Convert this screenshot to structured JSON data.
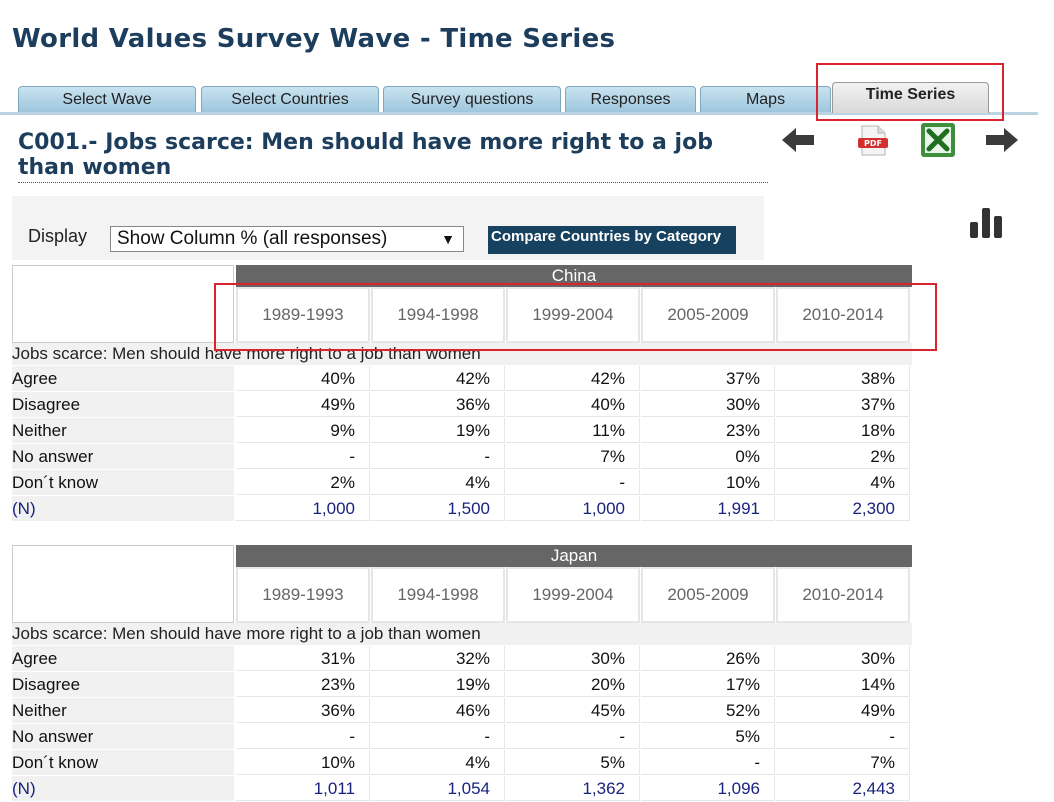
{
  "page_title": "World Values Survey Wave - Time Series",
  "tabs": [
    {
      "label": "Select Wave"
    },
    {
      "label": "Select Countries"
    },
    {
      "label": "Survey questions"
    },
    {
      "label": "Responses"
    },
    {
      "label": "Maps"
    },
    {
      "label": "Time Series",
      "active": true
    }
  ],
  "question_title": "C001.- Jobs scarce: Men should have more right to a job than women",
  "toolbar_icons": [
    "back-arrow-icon",
    "pdf-icon",
    "excel-icon",
    "forward-arrow-icon",
    "bar-chart-icon"
  ],
  "display": {
    "label": "Display",
    "selected": "Show Column % (all responses)",
    "compare_button": "Compare Countries by Category"
  },
  "countries": [
    {
      "name": "China",
      "waves": [
        "1989-1993",
        "1994-1998",
        "1999-2004",
        "2005-2009",
        "2010-2014"
      ],
      "question": "Jobs scarce: Men should have more right to a job than women",
      "rows": [
        {
          "label": "Agree",
          "values": [
            "40%",
            "42%",
            "42%",
            "37%",
            "38%"
          ]
        },
        {
          "label": "Disagree",
          "values": [
            "49%",
            "36%",
            "40%",
            "30%",
            "37%"
          ]
        },
        {
          "label": "Neither",
          "values": [
            "9%",
            "19%",
            "11%",
            "23%",
            "18%"
          ]
        },
        {
          "label": "No answer",
          "values": [
            "-",
            "-",
            "7%",
            "0%",
            "2%"
          ]
        },
        {
          "label": "Don´t know",
          "values": [
            "2%",
            "4%",
            "-",
            "10%",
            "4%"
          ]
        },
        {
          "label": "(N)",
          "values": [
            "1,000",
            "1,500",
            "1,000",
            "1,991",
            "2,300"
          ]
        }
      ]
    },
    {
      "name": "Japan",
      "waves": [
        "1989-1993",
        "1994-1998",
        "1999-2004",
        "2005-2009",
        "2010-2014"
      ],
      "question": "Jobs scarce: Men should have more right to a job than women",
      "rows": [
        {
          "label": "Agree",
          "values": [
            "31%",
            "32%",
            "30%",
            "26%",
            "30%"
          ]
        },
        {
          "label": "Disagree",
          "values": [
            "23%",
            "19%",
            "20%",
            "17%",
            "14%"
          ]
        },
        {
          "label": "Neither",
          "values": [
            "36%",
            "46%",
            "45%",
            "52%",
            "49%"
          ]
        },
        {
          "label": "No answer",
          "values": [
            "-",
            "-",
            "-",
            "5%",
            "-"
          ]
        },
        {
          "label": "Don´t know",
          "values": [
            "10%",
            "4%",
            "5%",
            "-",
            "7%"
          ]
        },
        {
          "label": "(N)",
          "values": [
            "1,011",
            "1,054",
            "1,362",
            "1,096",
            "2,443"
          ]
        }
      ]
    }
  ]
}
